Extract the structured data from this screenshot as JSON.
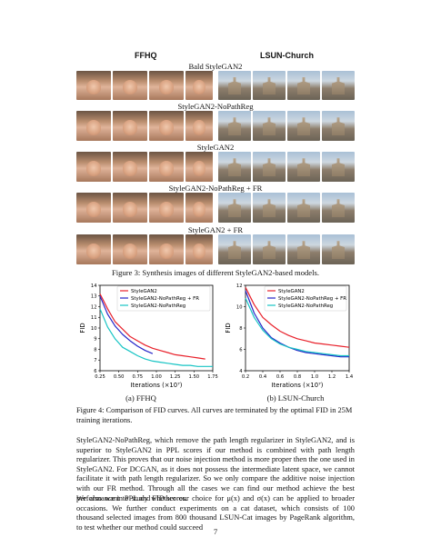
{
  "figure3": {
    "col_ffhq": "FFHQ",
    "col_lsun": "LSUN-Church",
    "rows": [
      {
        "label": "Bald StyleGAN2"
      },
      {
        "label": "StyleGAN2-NoPathReg"
      },
      {
        "label": "StyleGAN2"
      },
      {
        "label": "StyleGAN2-NoPathReg + FR"
      },
      {
        "label": "StyleGAN2 + FR"
      }
    ],
    "caption": "Figure 3: Synthesis images of different StyleGAN2-based models."
  },
  "chart_data": [
    {
      "type": "line",
      "xlabel": "Iterations (×10⁷)",
      "ylabel": "FID",
      "xlim": [
        0.25,
        1.75
      ],
      "ylim": [
        6,
        14
      ],
      "xticks": [
        "0.25",
        "0.50",
        "0.75",
        "1.00",
        "1.25",
        "1.50",
        "1.75"
      ],
      "yticks": [
        "6",
        "7",
        "8",
        "9",
        "10",
        "11",
        "12",
        "13",
        "14"
      ],
      "legend": "top-right",
      "series": [
        {
          "name": "StyleGAN2",
          "color": "#e8202a",
          "x": [
            0.25,
            0.35,
            0.45,
            0.55,
            0.65,
            0.75,
            0.85,
            0.95,
            1.05,
            1.15,
            1.25,
            1.35,
            1.45,
            1.55,
            1.65
          ],
          "y": [
            13.2,
            11.8,
            10.6,
            9.9,
            9.2,
            8.8,
            8.4,
            8.1,
            7.9,
            7.7,
            7.5,
            7.4,
            7.3,
            7.2,
            7.1
          ]
        },
        {
          "name": "StyleGAN2-NoPathReg + FR",
          "color": "#2424c8",
          "x": [
            0.25,
            0.35,
            0.45,
            0.55,
            0.65,
            0.75,
            0.85,
            0.95
          ],
          "y": [
            13.0,
            11.3,
            10.2,
            9.4,
            8.8,
            8.3,
            7.9,
            7.6
          ]
        },
        {
          "name": "StyleGAN2-NoPathReg",
          "color": "#17c4c4",
          "x": [
            0.25,
            0.35,
            0.45,
            0.55,
            0.65,
            0.75,
            0.85,
            0.95,
            1.05,
            1.15,
            1.25,
            1.35,
            1.45,
            1.55,
            1.65,
            1.75
          ],
          "y": [
            11.8,
            10.1,
            9.0,
            8.2,
            7.8,
            7.4,
            7.1,
            6.9,
            6.8,
            6.7,
            6.6,
            6.5,
            6.5,
            6.4,
            6.4,
            6.4
          ]
        }
      ],
      "caption": "(a) FFHQ"
    },
    {
      "type": "line",
      "xlabel": "Iterations (×10⁷)",
      "ylabel": "FID",
      "xlim": [
        0.2,
        1.4
      ],
      "ylim": [
        4,
        12
      ],
      "xticks": [
        "0.2",
        "0.4",
        "0.6",
        "0.8",
        "1.0",
        "1.2",
        "1.4"
      ],
      "yticks": [
        "4",
        "6",
        "8",
        "10",
        "12"
      ],
      "legend": "top-right",
      "series": [
        {
          "name": "StyleGAN2",
          "color": "#e8202a",
          "x": [
            0.2,
            0.3,
            0.4,
            0.5,
            0.6,
            0.7,
            0.8,
            0.9,
            1.0,
            1.1,
            1.2,
            1.3,
            1.4
          ],
          "y": [
            11.8,
            10.2,
            9.0,
            8.3,
            7.7,
            7.3,
            7.0,
            6.8,
            6.6,
            6.5,
            6.4,
            6.3,
            6.2
          ]
        },
        {
          "name": "StyleGAN2-NoPathReg + FR",
          "color": "#2424c8",
          "x": [
            0.2,
            0.3,
            0.4,
            0.5,
            0.6,
            0.7,
            0.8,
            0.9,
            1.0,
            1.1,
            1.2,
            1.3,
            1.4
          ],
          "y": [
            11.5,
            9.4,
            8.0,
            7.1,
            6.6,
            6.2,
            5.9,
            5.7,
            5.6,
            5.5,
            5.4,
            5.3,
            5.3
          ]
        },
        {
          "name": "StyleGAN2-NoPathReg",
          "color": "#17c4c4",
          "x": [
            0.2,
            0.3,
            0.4,
            0.5,
            0.6,
            0.7,
            0.8,
            0.9,
            1.0,
            1.1,
            1.2,
            1.3,
            1.4
          ],
          "y": [
            10.8,
            9.0,
            7.8,
            7.0,
            6.5,
            6.2,
            6.0,
            5.8,
            5.7,
            5.6,
            5.5,
            5.4,
            5.4
          ]
        }
      ],
      "caption": "(b) LSUN-Church"
    }
  ],
  "figure4_caption": "Figure 4: Comparison of FID curves. All curves are terminated by the optimal FID in 25M training iterations.",
  "paragraphs": [
    "StyleGAN2-NoPathReg, which remove the path length regularizer in StyleGAN2, and is superior to StyleGAN2 in PPL scores if our method is combined with path length regularizer. This proves that our noise injection method is more proper then the one used in StyleGAN2. For DCGAN, as it does not possess the intermediate latent space, we cannot facilitate it with path length regularizer. So we only compare the additive noise injection with our FR method. Through all the cases we can find our method achieve the best performance in PPL and FID scores.",
    "We also want to study whether our choice for μ(x) and σ(x) can be applied to broader occasions. We further conduct experiments on a cat dataset, which consists of 100 thousand selected images from 800 thousand LSUN-Cat images by PageRank algorithm, to test whether our method could succeed"
  ],
  "page_number": "7"
}
